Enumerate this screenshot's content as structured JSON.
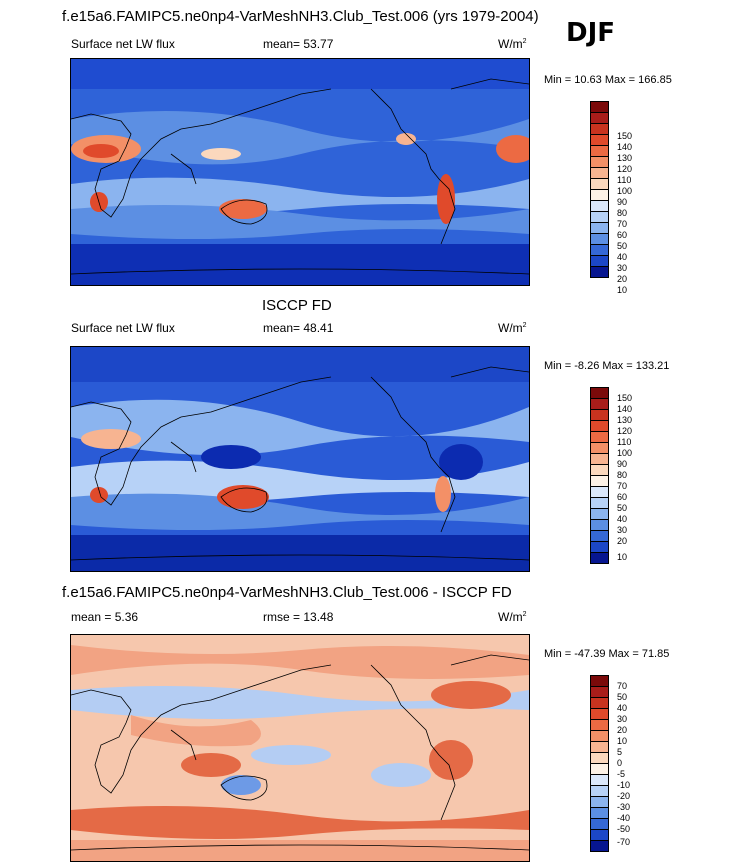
{
  "djf_label": "DJF",
  "panels": [
    {
      "title": "f.e15a6.FAMIPC5.ne0np4-VarMeshNH3.Club_Test.006 (yrs 1979-2004)",
      "left_label": "Surface net LW flux",
      "center_label": "mean=  53.77",
      "units": "W/m",
      "units_exp": "2",
      "minmax": "Min =  10.63 Max = 166.85",
      "colorbar": {
        "colors": [
          "#7b0a0a",
          "#a81d1a",
          "#c8331f",
          "#e04a2b",
          "#ec6a43",
          "#f39067",
          "#f7b491",
          "#fbd8bd",
          "#fdf2e6",
          "#dbe8fb",
          "#b7d2f7",
          "#8bb4ef",
          "#5c8fe3",
          "#3568d6",
          "#1c47c7",
          "#0c2bb0",
          "#071690"
        ],
        "labels": [
          "150",
          "140",
          "130",
          "120",
          "110",
          "100",
          "90",
          "80",
          "70",
          "60",
          "50",
          "40",
          "30",
          "20",
          "10"
        ]
      }
    },
    {
      "title": "ISCCP FD",
      "left_label": "Surface net LW flux",
      "center_label": "mean=  48.41",
      "units": "W/m",
      "units_exp": "2",
      "minmax": "Min =  -8.26 Max = 133.21",
      "colorbar": {
        "colors": [
          "#7b0a0a",
          "#a81d1a",
          "#c8331f",
          "#e04a2b",
          "#ec6a43",
          "#f39067",
          "#f7b491",
          "#fbd8bd",
          "#fdf2e6",
          "#dbe8fb",
          "#b7d2f7",
          "#8bb4ef",
          "#5c8fe3",
          "#3568d6",
          "#1c47c7",
          "#0c2bb0",
          "#071690"
        ],
        "labels": [
          "150",
          "140",
          "130",
          "120",
          "110",
          "100",
          "90",
          "80",
          "70",
          "60",
          "50",
          "40",
          "30",
          "20",
          "10"
        ]
      }
    },
    {
      "title": "f.e15a6.FAMIPC5.ne0np4-VarMeshNH3.Club_Test.006 - ISCCP FD",
      "left_label": "mean =   5.36",
      "center_label": "rmse =  13.48",
      "units": "W/m",
      "units_exp": "2",
      "minmax": "Min = -47.39 Max =  71.85",
      "colorbar": {
        "colors": [
          "#7b0a0a",
          "#a81d1a",
          "#c8331f",
          "#e04a2b",
          "#ec6a43",
          "#f39067",
          "#f7b491",
          "#fbd8bd",
          "#fdf2e6",
          "#dbe8fb",
          "#b7d2f7",
          "#8bb4ef",
          "#5c8fe3",
          "#3568d6",
          "#1c47c7",
          "#0c2bb0",
          "#071690"
        ],
        "labels": [
          "70",
          "50",
          "40",
          "30",
          "20",
          "10",
          "5",
          "0",
          "-5",
          "-10",
          "-20",
          "-30",
          "-40",
          "-50",
          "-70"
        ]
      }
    }
  ],
  "map_palettes": {
    "model": {
      "base": "#2f63d8",
      "ocean_band": "#6d9be8",
      "deep": "#0e2fb4",
      "warm1": "#f2a07a",
      "warm2": "#e4542f",
      "land": "#7fa9ec"
    },
    "obs": {
      "base": "#2a5bd6",
      "ocean_band": "#7ea6ea",
      "deep": "#0b2aa8",
      "warm1": "#f4aa84",
      "warm2": "#e0522f",
      "land": "#5b8ce2"
    },
    "diff": {
      "base": "#f6c7ad",
      "ocean_band": "#f2a383",
      "deep": "#e46a46",
      "cool1": "#b4cdf3",
      "cool2": "#6d9ae6",
      "land": "#fbe2d4"
    }
  }
}
